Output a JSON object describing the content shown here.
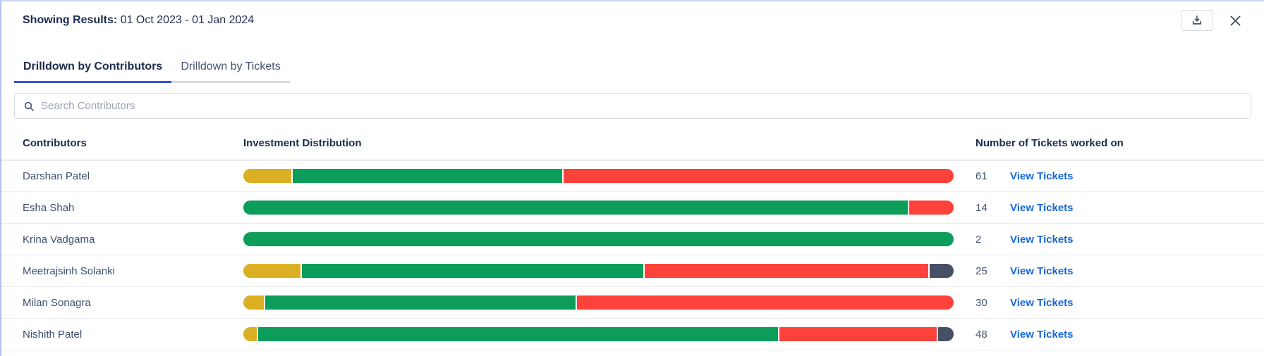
{
  "header": {
    "label": "Showing Results:",
    "value": "01 Oct 2023 - 01 Jan 2024"
  },
  "tabs": [
    {
      "label": "Drilldown by Contributors",
      "active": true
    },
    {
      "label": "Drilldown by Tickets",
      "active": false
    }
  ],
  "search": {
    "placeholder": "Search Contributors"
  },
  "table": {
    "columns": {
      "contributors": "Contributors",
      "distribution": "Investment Distribution",
      "tickets": "Number of Tickets worked on"
    },
    "view_tickets_label": "View Tickets",
    "rows": [
      {
        "contributor": "Darshan Patel",
        "tickets": "61",
        "segments": [
          {
            "color": "gold",
            "pct": 6.8
          },
          {
            "color": "green",
            "pct": 38.1
          },
          {
            "color": "red",
            "pct": 55.1
          }
        ]
      },
      {
        "contributor": "Esha Shah",
        "tickets": "14",
        "segments": [
          {
            "color": "green",
            "pct": 93.7
          },
          {
            "color": "red",
            "pct": 6.3
          }
        ]
      },
      {
        "contributor": "Krina Vadgama",
        "tickets": "2",
        "segments": [
          {
            "color": "green",
            "pct": 100
          }
        ]
      },
      {
        "contributor": "Meetrajsinh Solanki",
        "tickets": "25",
        "segments": [
          {
            "color": "gold",
            "pct": 8.1
          },
          {
            "color": "green",
            "pct": 48.3
          },
          {
            "color": "red",
            "pct": 40.2
          },
          {
            "color": "slate",
            "pct": 3.4
          }
        ]
      },
      {
        "contributor": "Milan Sonagra",
        "tickets": "30",
        "segments": [
          {
            "color": "gold",
            "pct": 2.9
          },
          {
            "color": "green",
            "pct": 43.9
          },
          {
            "color": "red",
            "pct": 53.2
          }
        ]
      },
      {
        "contributor": "Nishith Patel",
        "tickets": "48",
        "segments": [
          {
            "color": "gold",
            "pct": 1.9
          },
          {
            "color": "green",
            "pct": 73.6
          },
          {
            "color": "red",
            "pct": 22.3
          },
          {
            "color": "slate",
            "pct": 2.2
          }
        ]
      }
    ]
  },
  "colors": {
    "gold": "#DBAF24",
    "green": "#0C9D5B",
    "red": "#FC423A",
    "slate": "#475166",
    "tab_active": "#3C51D9",
    "link": "#1868DB"
  },
  "icons": {
    "download": "download-tray-icon",
    "close": "close-x-icon",
    "search": "search-icon"
  }
}
